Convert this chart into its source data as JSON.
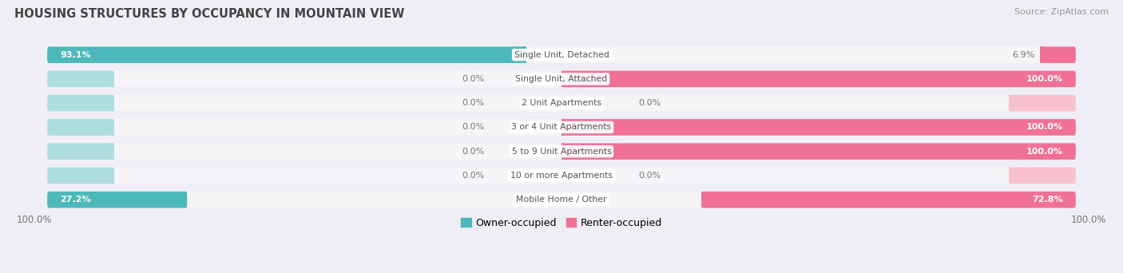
{
  "title": "HOUSING STRUCTURES BY OCCUPANCY IN MOUNTAIN VIEW",
  "source": "Source: ZipAtlas.com",
  "categories": [
    "Single Unit, Detached",
    "Single Unit, Attached",
    "2 Unit Apartments",
    "3 or 4 Unit Apartments",
    "5 to 9 Unit Apartments",
    "10 or more Apartments",
    "Mobile Home / Other"
  ],
  "owner_pct": [
    93.1,
    0.0,
    0.0,
    0.0,
    0.0,
    0.0,
    27.2
  ],
  "renter_pct": [
    6.9,
    100.0,
    0.0,
    100.0,
    100.0,
    0.0,
    72.8
  ],
  "owner_color": "#4db8ba",
  "renter_color": "#f07096",
  "owner_color_light": "#aedde0",
  "renter_color_light": "#f9c0d0",
  "bg_color": "#eeeef4",
  "bar_bg": "#e8e8f0",
  "bar_bg2": "#f5f5f8",
  "text_dark": "#555555",
  "text_white": "#ffffff",
  "text_gray": "#777777",
  "title_color": "#444444",
  "source_color": "#999999",
  "legend_owner": "Owner-occupied",
  "legend_renter": "Renter-occupied",
  "axis_label": "100.0%"
}
